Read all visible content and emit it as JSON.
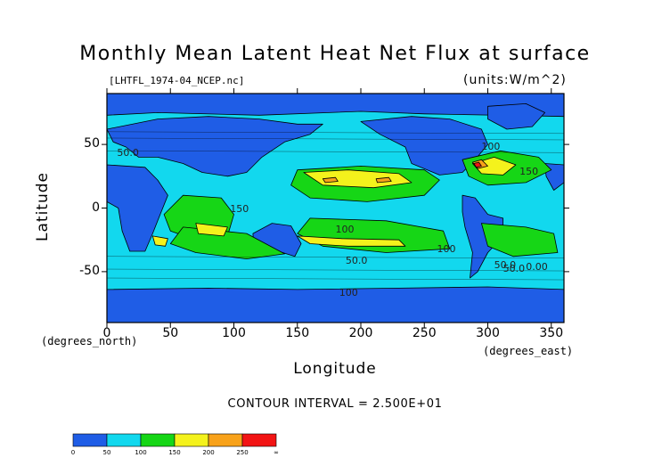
{
  "chart_data": {
    "type": "heatmap",
    "title": "Monthly Mean Latent Heat Net Flux at surface",
    "file_label": "[LHTFL_1974-04_NCEP.nc]",
    "units_label": "(units:W/m^2)",
    "xlabel": "Longitude",
    "ylabel": "Latitude",
    "x_unit_label": "(degrees_east)",
    "y_unit_label": "(degrees_north)",
    "xlim": [
      0,
      360
    ],
    "ylim": [
      -90,
      90
    ],
    "x_ticks": [
      0,
      50,
      100,
      150,
      200,
      250,
      300,
      350
    ],
    "y_ticks": [
      50,
      0,
      -50
    ],
    "contour_interval_text": "CONTOUR INTERVAL = 2.500E+01",
    "contour_labels": [
      "50.0",
      "100",
      "150",
      "50.0",
      "100",
      "50.0",
      "100",
      "50.0",
      "0.00",
      "100",
      "150"
    ],
    "colorbar": {
      "levels": [
        0,
        50,
        100,
        150,
        200,
        250
      ],
      "tick_labels": [
        "0",
        "50",
        "100",
        "150",
        "200",
        "250",
        "∞"
      ],
      "colors": [
        "#1f5de6",
        "#12d8ee",
        "#16d616",
        "#f4f21c",
        "#f8a21a",
        "#f21414"
      ]
    }
  }
}
